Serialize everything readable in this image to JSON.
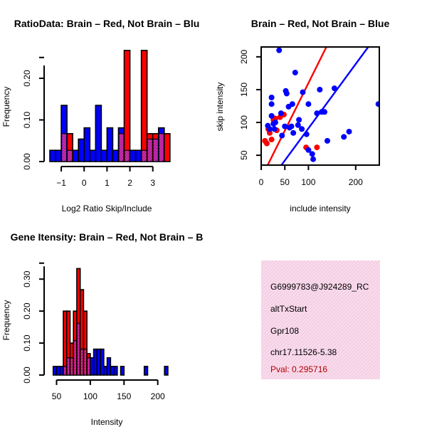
{
  "colors": {
    "red": "#ff0000",
    "blue": "#0000ff",
    "overlap": "#a020a0",
    "overlapHatch": "#ff3aa0",
    "infoBg": "#f8dcec",
    "infoHatch": "#f0bcd8",
    "pval": "#b00000"
  },
  "chart_data": [
    {
      "type": "bar",
      "id": "ratio",
      "title": "RatioData: Brain – Red, Not Brain – Blu",
      "xlabel": "Log2 Ratio Skip/Include",
      "ylabel": "Frequency",
      "xlim": [
        -1.5,
        3.6
      ],
      "ylim": [
        0,
        0.265
      ],
      "xticks": [
        -1,
        0,
        1,
        2,
        3
      ],
      "yticks": [
        0.0,
        0.1,
        0.2
      ],
      "ytick_labels": [
        "0.00",
        "0.10",
        "0.20"
      ],
      "bin_start": -1.5,
      "bin_width": 0.25,
      "series": [
        {
          "name": "Brain",
          "color": "red",
          "values": [
            0,
            0,
            0.067,
            0.067,
            0,
            0,
            0,
            0,
            0,
            0,
            0,
            0,
            0.067,
            0.267,
            0,
            0,
            0.267,
            0.067,
            0.067,
            0.067,
            0.067
          ]
        },
        {
          "name": "Not Brain",
          "color": "blue",
          "values": [
            0.027,
            0.027,
            0.135,
            0.027,
            0.027,
            0.054,
            0.081,
            0.027,
            0.135,
            0.027,
            0.081,
            0.027,
            0.081,
            0.027,
            0.027,
            0.027,
            0.027,
            0.054,
            0.054,
            0.081,
            0
          ]
        }
      ]
    },
    {
      "type": "scatter",
      "id": "scatter",
      "title": "Brain – Red, Not Brain – Blue",
      "xlabel": "include intensity",
      "ylabel": "skip intensity",
      "xlim": [
        0,
        250
      ],
      "ylim": [
        35,
        215
      ],
      "xticks": [
        0,
        50,
        100,
        200
      ],
      "yticks": [
        50,
        100,
        150,
        200
      ],
      "series": [
        {
          "name": "Brain",
          "color": "red",
          "points": [
            [
              8,
              72
            ],
            [
              12,
              68
            ],
            [
              15,
              90
            ],
            [
              18,
              84
            ],
            [
              22,
              74
            ],
            [
              26,
              104
            ],
            [
              30,
              106
            ],
            [
              33,
              88
            ],
            [
              40,
              108
            ],
            [
              48,
              112
            ],
            [
              95,
              62
            ],
            [
              118,
              62
            ]
          ]
        },
        {
          "name": "Not Brain",
          "color": "blue",
          "points": [
            [
              14,
              95
            ],
            [
              18,
              90
            ],
            [
              22,
              138
            ],
            [
              22,
              128
            ],
            [
              22,
              110
            ],
            [
              26,
              98
            ],
            [
              28,
              90
            ],
            [
              30,
              100
            ],
            [
              38,
              210
            ],
            [
              42,
              114
            ],
            [
              44,
              80
            ],
            [
              50,
              94
            ],
            [
              52,
              148
            ],
            [
              54,
              144
            ],
            [
              58,
              124
            ],
            [
              60,
              92
            ],
            [
              64,
              94
            ],
            [
              66,
              128
            ],
            [
              68,
              84
            ],
            [
              72,
              176
            ],
            [
              78,
              96
            ],
            [
              80,
              104
            ],
            [
              86,
              90
            ],
            [
              88,
              146
            ],
            [
              96,
              82
            ],
            [
              100,
              58
            ],
            [
              100,
              128
            ],
            [
              108,
              52
            ],
            [
              110,
              44
            ],
            [
              118,
              114
            ],
            [
              124,
              150
            ],
            [
              128,
              116
            ],
            [
              134,
              116
            ],
            [
              140,
              72
            ],
            [
              155,
              152
            ],
            [
              175,
              78
            ],
            [
              186,
              86
            ],
            [
              248,
              128
            ]
          ]
        }
      ],
      "lines": [
        {
          "color": "red",
          "slope": 1.45,
          "intercept": 15
        },
        {
          "color": "blue",
          "slope": 0.98,
          "intercept": -7
        }
      ]
    },
    {
      "type": "bar",
      "id": "intensity",
      "title": "Gene Itensity: Brain – Red, Not Brain – B",
      "xlabel": "Intensity",
      "ylabel": "Frequency",
      "xlim": [
        40,
        213
      ],
      "ylim": [
        0,
        0.345
      ],
      "xticks": [
        50,
        100,
        150,
        200
      ],
      "yticks": [
        0.0,
        0.1,
        0.2,
        0.3
      ],
      "ytick_labels": [
        "0.00",
        "0.10",
        "0.20",
        "0.30"
      ],
      "bin_start": 45,
      "bin_width": 5,
      "series": [
        {
          "name": "Brain",
          "color": "red",
          "values": [
            0,
            0,
            0,
            0.2,
            0.2,
            0.1,
            0.2,
            0.333,
            0.267,
            0.2,
            0.067,
            0,
            0,
            0,
            0,
            0,
            0,
            0,
            0,
            0,
            0,
            0,
            0,
            0,
            0,
            0,
            0,
            0,
            0,
            0,
            0,
            0,
            0,
            0
          ]
        },
        {
          "name": "Not Brain",
          "color": "blue",
          "values": [
            0.027,
            0.027,
            0.027,
            0.027,
            0.054,
            0.054,
            0.108,
            0.162,
            0.081,
            0.081,
            0.054,
            0.054,
            0.081,
            0.081,
            0.081,
            0.027,
            0.054,
            0.027,
            0.027,
            0,
            0.027,
            0,
            0,
            0,
            0,
            0,
            0,
            0.027,
            0,
            0,
            0,
            0,
            0,
            0.027
          ]
        }
      ]
    }
  ],
  "info": {
    "id": "G6999783@J924289_RC",
    "event": "altTxStart",
    "gene": "Gpr108",
    "location": "chr17.11526-5.38",
    "pval": "Pval: 0.295716"
  }
}
